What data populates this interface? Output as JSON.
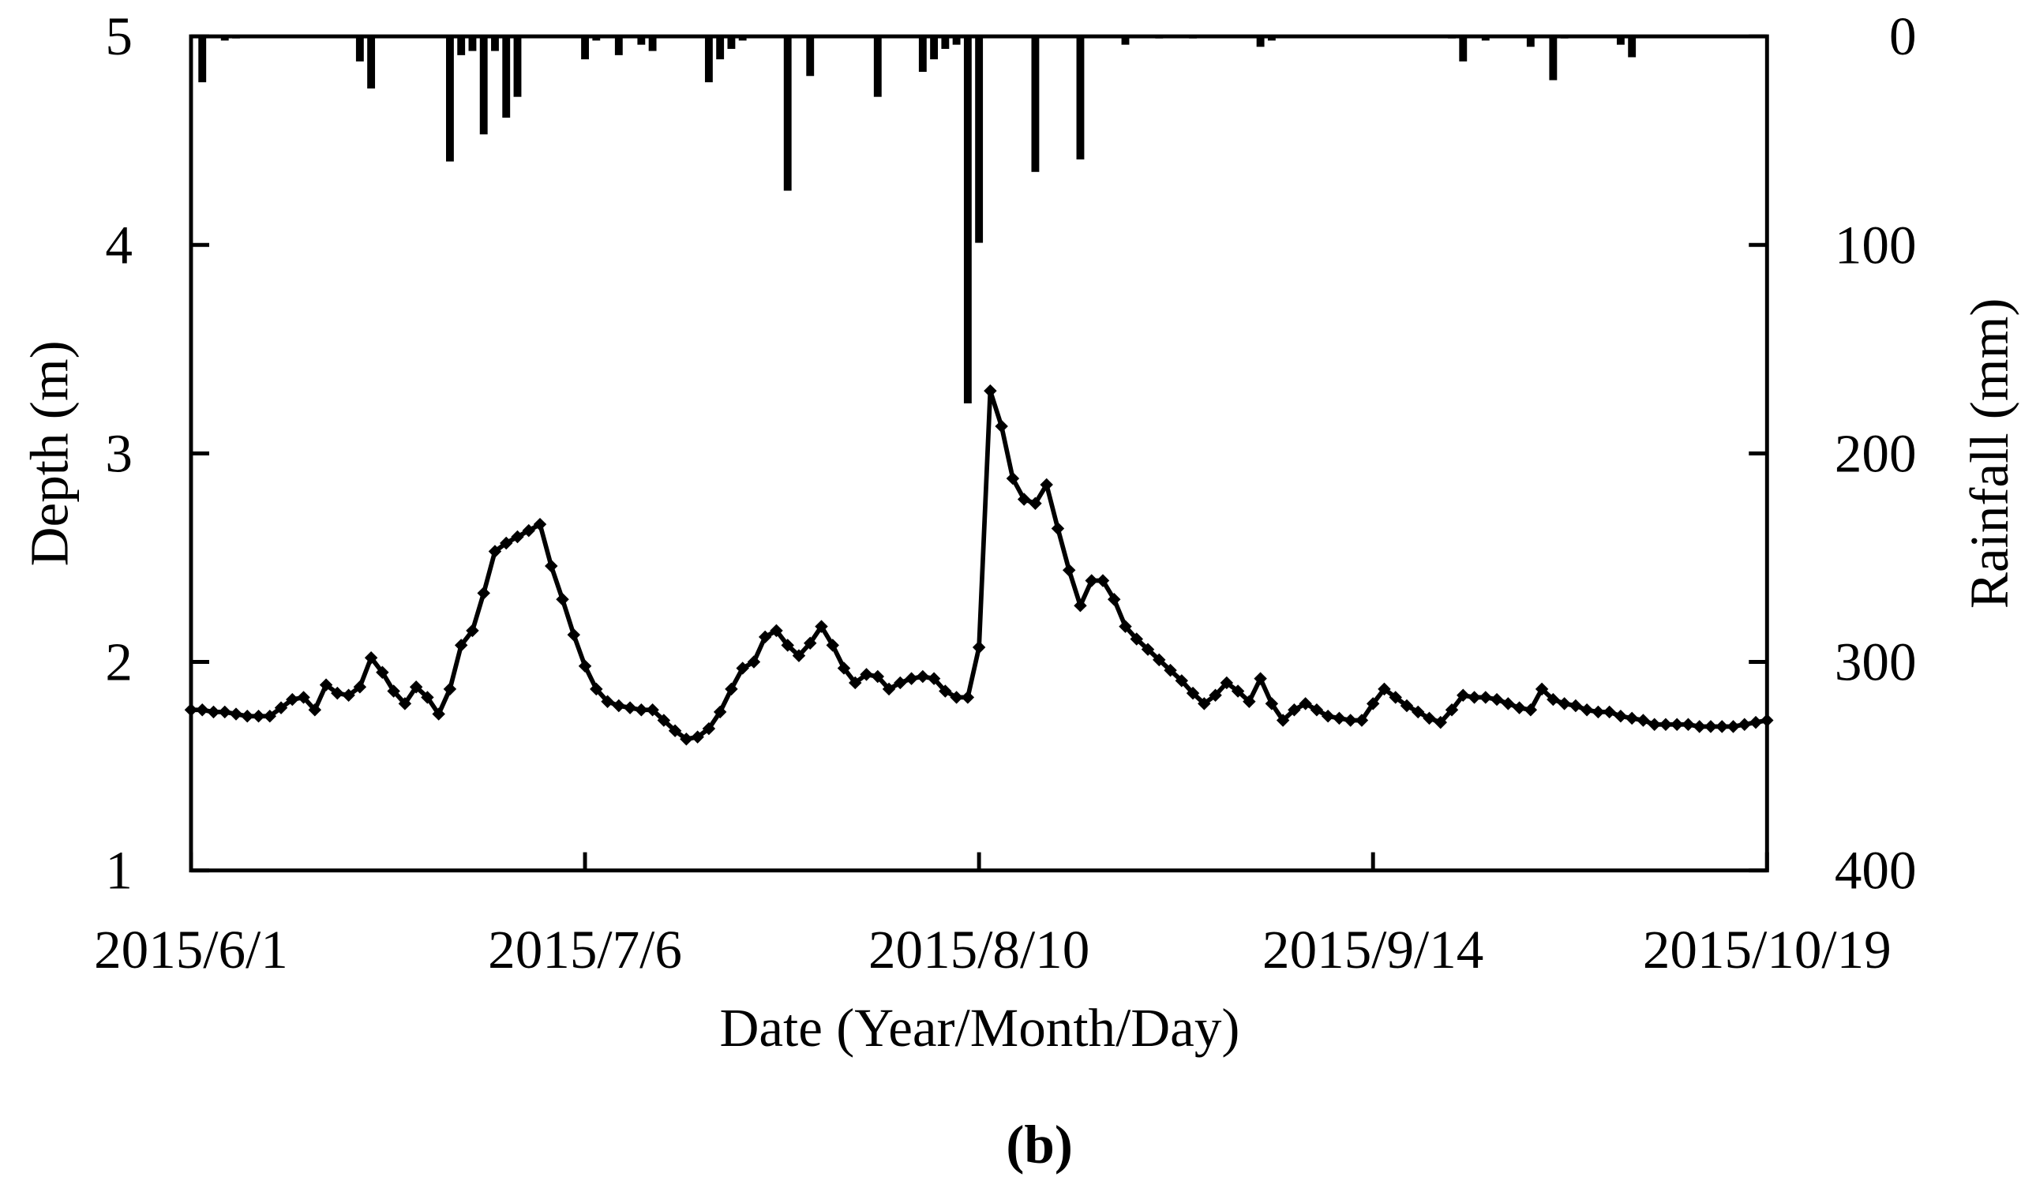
{
  "chart_data": {
    "type": "line",
    "xlabel": "Date (Year/Month/Day)",
    "ylabel": "Depth (m)",
    "y2label": "Rainfall (mm)",
    "caption": "(b)",
    "x": [
      "2015/6/1",
      "2015/6/2",
      "2015/6/3",
      "2015/6/4",
      "2015/6/5",
      "2015/6/6",
      "2015/6/7",
      "2015/6/8",
      "2015/6/9",
      "2015/6/10",
      "2015/6/11",
      "2015/6/12",
      "2015/6/13",
      "2015/6/14",
      "2015/6/15",
      "2015/6/16",
      "2015/6/17",
      "2015/6/18",
      "2015/6/19",
      "2015/6/20",
      "2015/6/21",
      "2015/6/22",
      "2015/6/23",
      "2015/6/24",
      "2015/6/25",
      "2015/6/26",
      "2015/6/27",
      "2015/6/28",
      "2015/6/29",
      "2015/6/30",
      "2015/7/1",
      "2015/7/2",
      "2015/7/3",
      "2015/7/4",
      "2015/7/5",
      "2015/7/6",
      "2015/7/7",
      "2015/7/8",
      "2015/7/9",
      "2015/7/10",
      "2015/7/11",
      "2015/7/12",
      "2015/7/13",
      "2015/7/14",
      "2015/7/15",
      "2015/7/16",
      "2015/7/17",
      "2015/7/18",
      "2015/7/19",
      "2015/7/20",
      "2015/7/21",
      "2015/7/22",
      "2015/7/23",
      "2015/7/24",
      "2015/7/25",
      "2015/7/26",
      "2015/7/27",
      "2015/7/28",
      "2015/7/29",
      "2015/7/30",
      "2015/7/31",
      "2015/8/1",
      "2015/8/2",
      "2015/8/3",
      "2015/8/4",
      "2015/8/5",
      "2015/8/6",
      "2015/8/7",
      "2015/8/8",
      "2015/8/9",
      "2015/8/10",
      "2015/8/11",
      "2015/8/12",
      "2015/8/13",
      "2015/8/14",
      "2015/8/15",
      "2015/8/16",
      "2015/8/17",
      "2015/8/18",
      "2015/8/19",
      "2015/8/20",
      "2015/8/21",
      "2015/8/22",
      "2015/8/23",
      "2015/8/24",
      "2015/8/25",
      "2015/8/26",
      "2015/8/27",
      "2015/8/28",
      "2015/8/29",
      "2015/8/30",
      "2015/8/31",
      "2015/9/1",
      "2015/9/2",
      "2015/9/3",
      "2015/9/4",
      "2015/9/5",
      "2015/9/6",
      "2015/9/7",
      "2015/9/8",
      "2015/9/9",
      "2015/9/10",
      "2015/9/11",
      "2015/9/12",
      "2015/9/13",
      "2015/9/14",
      "2015/9/15",
      "2015/9/16",
      "2015/9/17",
      "2015/9/18",
      "2015/9/19",
      "2015/9/20",
      "2015/9/21",
      "2015/9/22",
      "2015/9/23",
      "2015/9/24",
      "2015/9/25",
      "2015/9/26",
      "2015/9/27",
      "2015/9/28",
      "2015/9/29",
      "2015/9/30",
      "2015/10/1",
      "2015/10/2",
      "2015/10/3",
      "2015/10/4",
      "2015/10/5",
      "2015/10/6",
      "2015/10/7",
      "2015/10/8",
      "2015/10/9",
      "2015/10/10",
      "2015/10/11",
      "2015/10/12",
      "2015/10/13",
      "2015/10/14",
      "2015/10/15",
      "2015/10/16",
      "2015/10/17",
      "2015/10/18",
      "2015/10/19"
    ],
    "series": [
      {
        "type": "line",
        "color": "#000000",
        "values": [
          1.77,
          1.77,
          1.76,
          1.76,
          1.75,
          1.74,
          1.74,
          1.74,
          1.78,
          1.82,
          1.83,
          1.77,
          1.89,
          1.85,
          1.84,
          1.88,
          2.02,
          1.95,
          1.86,
          1.8,
          1.88,
          1.83,
          1.75,
          1.87,
          2.08,
          2.15,
          2.33,
          2.53,
          2.57,
          2.6,
          2.63,
          2.66,
          2.46,
          2.3,
          2.13,
          1.98,
          1.87,
          1.81,
          1.79,
          1.78,
          1.77,
          1.77,
          1.72,
          1.67,
          1.63,
          1.64,
          1.68,
          1.76,
          1.87,
          1.97,
          2.0,
          2.12,
          2.15,
          2.08,
          2.03,
          2.09,
          2.17,
          2.08,
          1.97,
          1.9,
          1.94,
          1.93,
          1.87,
          1.9,
          1.92,
          1.93,
          1.92,
          1.86,
          1.83,
          1.83,
          2.07,
          3.3,
          3.13,
          2.88,
          2.78,
          2.76,
          2.85,
          2.64,
          2.44,
          2.27,
          2.39,
          2.39,
          2.3,
          2.17,
          2.11,
          2.06,
          2.01,
          1.96,
          1.91,
          1.85,
          1.8,
          1.84,
          1.9,
          1.86,
          1.81,
          1.92,
          1.8,
          1.72,
          1.77,
          1.8,
          1.77,
          1.74,
          1.73,
          1.72,
          1.72,
          1.8,
          1.87,
          1.83,
          1.79,
          1.76,
          1.73,
          1.71,
          1.77,
          1.84,
          1.83,
          1.83,
          1.82,
          1.8,
          1.78,
          1.77,
          1.87,
          1.82,
          1.8,
          1.79,
          1.77,
          1.76,
          1.76,
          1.74,
          1.73,
          1.72,
          1.7,
          1.7,
          1.7,
          1.7,
          1.69,
          1.69,
          1.69,
          1.69,
          1.7,
          1.71,
          1.72
        ]
      },
      {
        "type": "bar",
        "axis": "y2",
        "color": "#000000",
        "values": [
          0,
          22,
          0,
          2,
          1,
          0,
          0,
          0,
          0,
          0,
          0,
          0,
          0,
          0,
          0,
          12,
          25,
          0,
          0,
          0,
          0,
          0,
          0,
          60,
          9,
          7,
          47,
          7,
          39,
          29,
          0,
          0,
          0,
          0,
          0,
          11,
          2,
          0,
          9,
          0,
          4,
          7,
          0,
          0,
          0,
          0,
          22,
          11,
          6,
          2,
          0,
          0,
          0,
          74,
          0,
          19,
          0,
          0,
          0,
          0,
          0,
          29,
          0,
          0,
          0,
          17,
          11,
          6,
          4,
          176,
          99,
          0,
          0,
          0,
          0,
          65,
          0,
          0,
          0,
          59,
          0,
          0,
          0,
          4,
          0,
          0,
          1,
          0,
          0,
          1,
          0,
          0,
          0,
          0,
          0,
          5,
          2,
          0,
          0,
          0,
          0,
          0,
          0,
          0,
          0,
          0,
          0,
          0,
          0,
          0,
          0,
          0,
          1,
          12,
          0,
          2,
          0,
          0,
          0,
          5,
          0,
          21,
          1,
          0,
          0,
          0,
          0,
          4,
          10,
          0,
          0,
          0,
          0,
          0,
          0,
          0,
          0,
          0,
          0,
          0,
          0
        ]
      }
    ],
    "xlim": [
      "2015/6/1",
      "2015/10/19"
    ],
    "xticks": [
      "2015/6/1",
      "2015/7/6",
      "2015/8/10",
      "2015/9/14",
      "2015/10/19"
    ],
    "ylim": [
      1,
      5
    ],
    "yticks": [
      1,
      2,
      3,
      4,
      5
    ],
    "y2lim": [
      400,
      0
    ],
    "y2ticks": [
      0,
      100,
      200,
      300,
      400
    ]
  }
}
